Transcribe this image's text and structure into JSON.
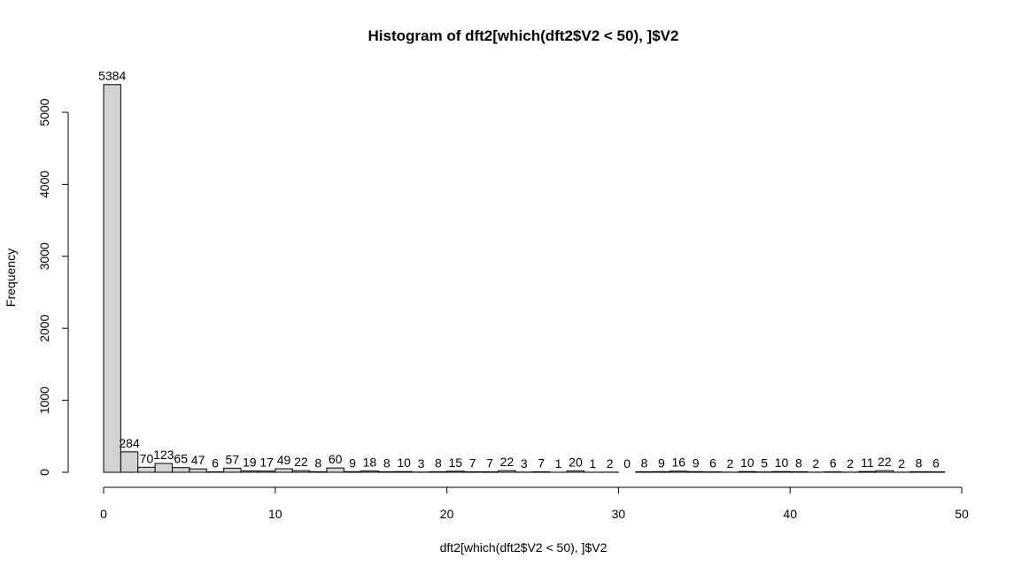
{
  "chart_data": {
    "type": "bar",
    "title": "Histogram of dft2[which(dft2$V2 < 50), ]$V2",
    "xlabel": "dft2[which(dft2$V2 < 50), ]$V2",
    "ylabel": "Frequency",
    "bin_width": 1,
    "x_start": 0,
    "xlim": [
      0,
      50
    ],
    "ylim": [
      0,
      5000
    ],
    "x_ticks": [
      0,
      10,
      20,
      30,
      40,
      50
    ],
    "y_ticks": [
      0,
      1000,
      2000,
      3000,
      4000,
      5000
    ],
    "values": [
      5384,
      284,
      70,
      123,
      65,
      47,
      6,
      57,
      19,
      17,
      49,
      22,
      8,
      60,
      9,
      18,
      8,
      10,
      3,
      8,
      15,
      7,
      7,
      22,
      3,
      7,
      1,
      20,
      1,
      2,
      0,
      8,
      9,
      16,
      9,
      6,
      2,
      10,
      5,
      10,
      8,
      2,
      6,
      2,
      11,
      22,
      2,
      8,
      6
    ],
    "grid": false,
    "bar_color": "#d3d3d3",
    "edge_color": "#000000"
  }
}
